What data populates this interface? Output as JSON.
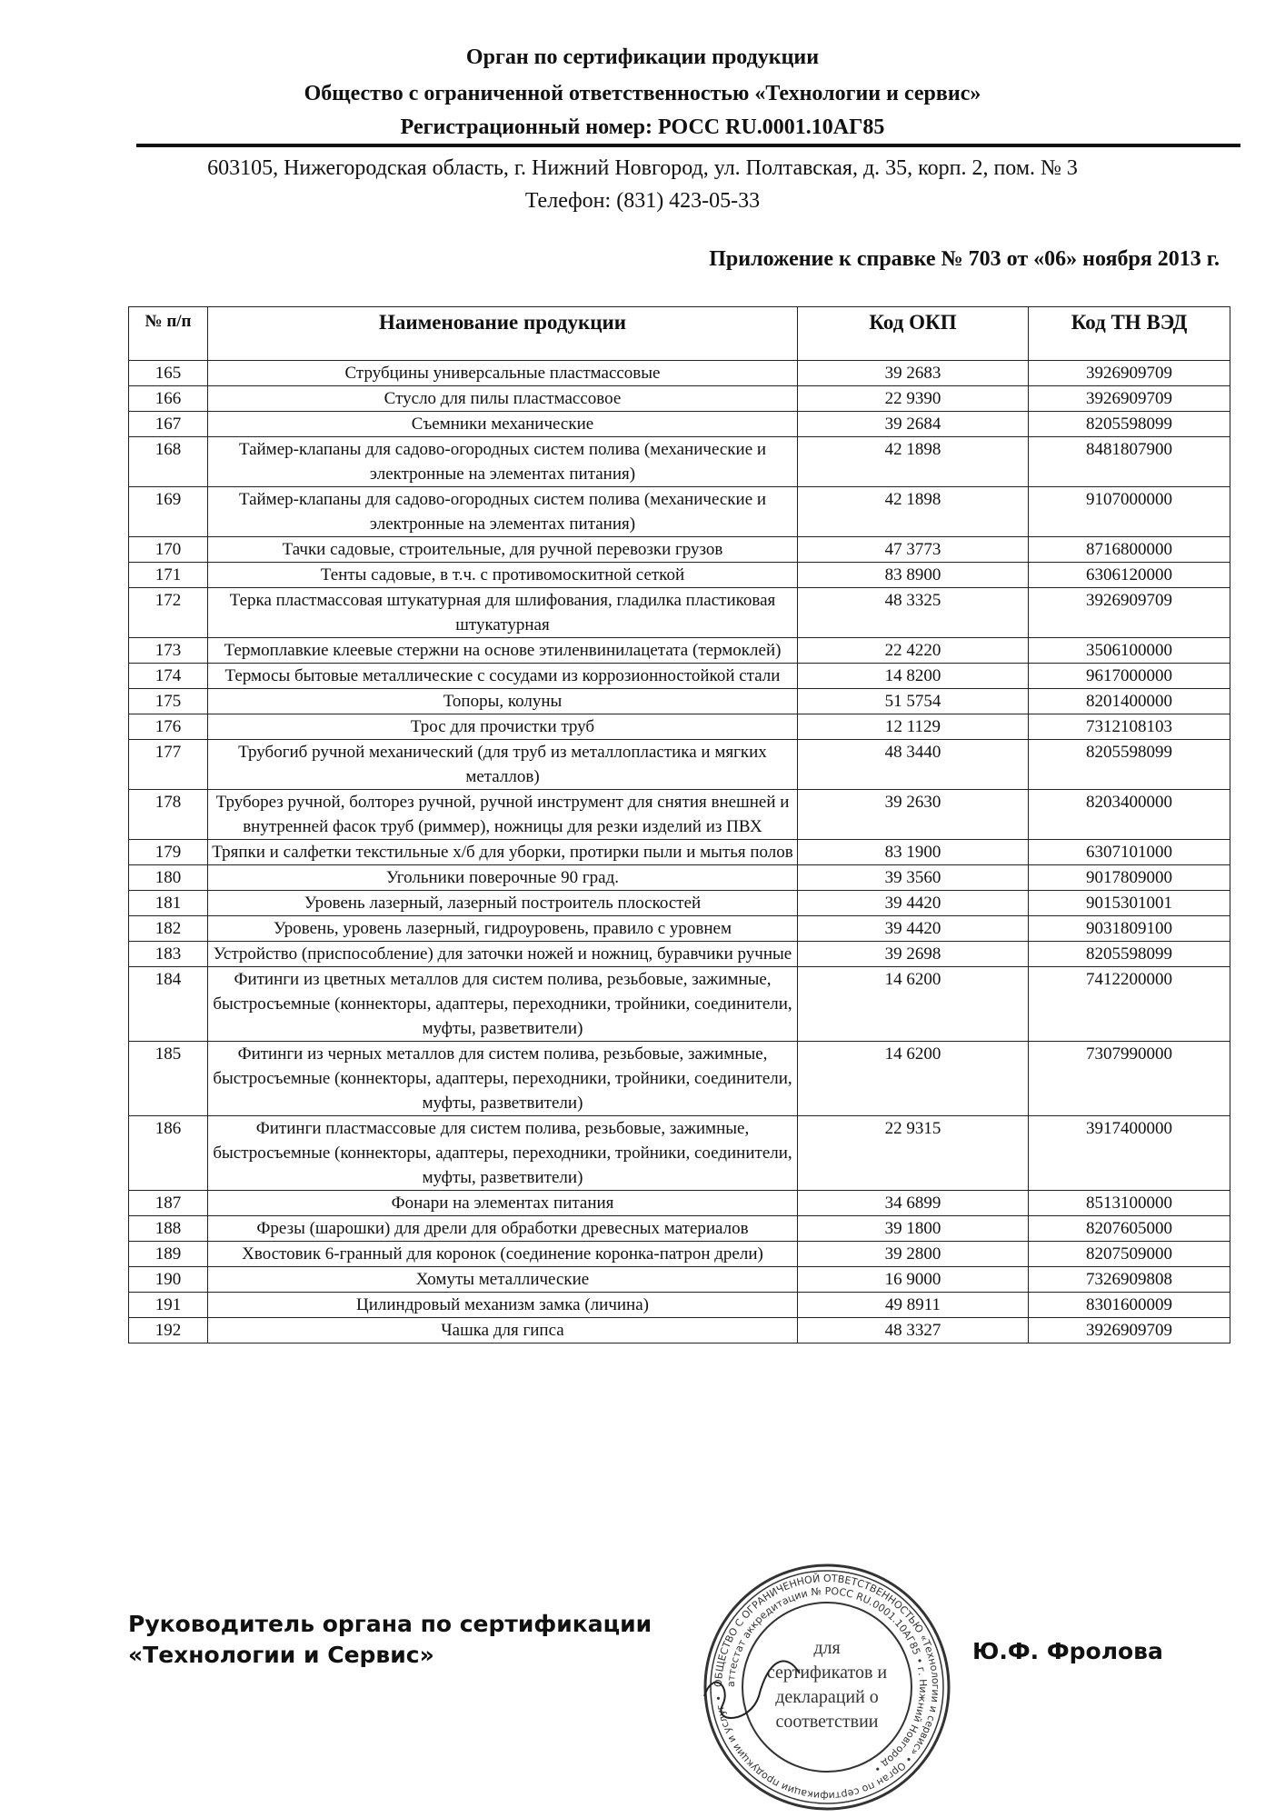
{
  "header": {
    "line1": "Орган по сертификации продукции",
    "line2": "Общество с ограниченной ответственностью «Технологии и сервис»",
    "line3": "Регистрационный номер: РОСС RU.0001.10АГ85",
    "address": "603105, Нижегородская область, г. Нижний Новгород, ул. Полтавская, д. 35, корп. 2, пом. № 3",
    "phone": "Телефон: (831) 423-05-33"
  },
  "annex": "Приложение к справке № 703 от «06» ноября 2013 г.",
  "table": {
    "headers": {
      "num": "№ п/п",
      "name": "Наименование продукции",
      "okp": "Код ОКП",
      "tnved": "Код ТН ВЭД"
    },
    "rows": [
      {
        "n": "165",
        "name": "Струбцины универсальные пластмассовые",
        "okp": "39 2683",
        "tn": "3926909709"
      },
      {
        "n": "166",
        "name": "Стусло для пилы пластмассовое",
        "okp": "22 9390",
        "tn": "3926909709"
      },
      {
        "n": "167",
        "name": "Съемники механические",
        "okp": "39 2684",
        "tn": "8205598099"
      },
      {
        "n": "168",
        "name": "Таймер-клапаны для садово-огородных систем полива (механические и электронные на элементах питания)",
        "okp": "42 1898",
        "tn": "8481807900"
      },
      {
        "n": "169",
        "name": "Таймер-клапаны для садово-огородных систем полива (механические и электронные на элементах питания)",
        "okp": "42 1898",
        "tn": "9107000000"
      },
      {
        "n": "170",
        "name": "Тачки садовые, строительные, для ручной перевозки грузов",
        "okp": "47 3773",
        "tn": "8716800000"
      },
      {
        "n": "171",
        "name": "Тенты садовые, в т.ч. с противомоскитной сеткой",
        "okp": "83 8900",
        "tn": "6306120000"
      },
      {
        "n": "172",
        "name": "Терка пластмассовая штукатурная для шлифования, гладилка пластиковая штукатурная",
        "okp": "48 3325",
        "tn": "3926909709"
      },
      {
        "n": "173",
        "name": "Термоплавкие клеевые стержни на основе этиленвинилацетата (термоклей)",
        "okp": "22 4220",
        "tn": "3506100000"
      },
      {
        "n": "174",
        "name": "Термосы бытовые металлические с сосудами из коррозионностойкой стали",
        "okp": "14 8200",
        "tn": "9617000000"
      },
      {
        "n": "175",
        "name": "Топоры, колуны",
        "okp": "51 5754",
        "tn": "8201400000"
      },
      {
        "n": "176",
        "name": "Трос для прочистки труб",
        "okp": "12 1129",
        "tn": "7312108103"
      },
      {
        "n": "177",
        "name": "Трубогиб ручной механический (для труб из металлопластика и мягких металлов)",
        "okp": "48 3440",
        "tn": "8205598099"
      },
      {
        "n": "178",
        "name": "Труборез ручной, болторез ручной, ручной инструмент для снятия внешней и внутренней фасок труб (риммер), ножницы для резки изделий из ПВХ",
        "okp": "39 2630",
        "tn": "8203400000"
      },
      {
        "n": "179",
        "name": "Тряпки и салфетки текстильные х/б для уборки, протирки пыли и мытья полов",
        "okp": "83 1900",
        "tn": "6307101000"
      },
      {
        "n": "180",
        "name": "Угольники поверочные 90 град.",
        "okp": "39 3560",
        "tn": "9017809000"
      },
      {
        "n": "181",
        "name": "Уровень лазерный, лазерный построитель плоскостей",
        "okp": "39 4420",
        "tn": "9015301001"
      },
      {
        "n": "182",
        "name": "Уровень, уровень лазерный, гидроуровень, правило с уровнем",
        "okp": "39 4420",
        "tn": "9031809100"
      },
      {
        "n": "183",
        "name": "Устройство (приспособление) для заточки ножей и ножниц, буравчики ручные",
        "okp": "39 2698",
        "tn": "8205598099"
      },
      {
        "n": "184",
        "name": "Фитинги из цветных металлов для систем полива, резьбовые, зажимные, быстросъемные (коннекторы, адаптеры, переходники, тройники, соединители, муфты, разветвители)",
        "okp": "14 6200",
        "tn": "7412200000"
      },
      {
        "n": "185",
        "name": "Фитинги из черных металлов для систем полива, резьбовые, зажимные, быстросъемные (коннекторы, адаптеры, переходники, тройники, соединители, муфты, разветвители)",
        "okp": "14 6200",
        "tn": "7307990000"
      },
      {
        "n": "186",
        "name": "Фитинги пластмассовые для систем полива, резьбовые, зажимные, быстросъемные (коннекторы, адаптеры, переходники, тройники, соединители, муфты, разветвители)",
        "okp": "22 9315",
        "tn": "3917400000"
      },
      {
        "n": "187",
        "name": "Фонари на элементах питания",
        "okp": "34 6899",
        "tn": "8513100000"
      },
      {
        "n": "188",
        "name": "Фрезы (шарошки) для дрели для обработки древесных материалов",
        "okp": "39 1800",
        "tn": "8207605000"
      },
      {
        "n": "189",
        "name": "Хвостовик 6-гранный для коронок (соединение коронка-патрон дрели)",
        "okp": "39 2800",
        "tn": "8207509000"
      },
      {
        "n": "190",
        "name": "Хомуты металлические",
        "okp": "16 9000",
        "tn": "7326909808"
      },
      {
        "n": "191",
        "name": "Цилиндровый механизм замка (личина)",
        "okp": "49 8911",
        "tn": "8301600009"
      },
      {
        "n": "192",
        "name": "Чашка для гипса",
        "okp": "48 3327",
        "tn": "3926909709"
      }
    ]
  },
  "footer": {
    "line1": "Руководитель органа по сертификации",
    "line2": "«Технологии и Сервис»",
    "signer": "Ю.Ф. Фролова"
  },
  "stamp": {
    "center_text": [
      "для",
      "сертификатов и",
      "деклараций о",
      "соответствии"
    ],
    "ring_text": "ОБЩЕСТВО С ОГРАНИЧЕННОЙ ОТВЕТСТВЕННОСТЬЮ «Технологии и сервис» • Орган по сертификации продукции и услуг • аттестат аккредитации № РОСС RU.0001.10АГ85 • г. Нижний Новгород •"
  }
}
